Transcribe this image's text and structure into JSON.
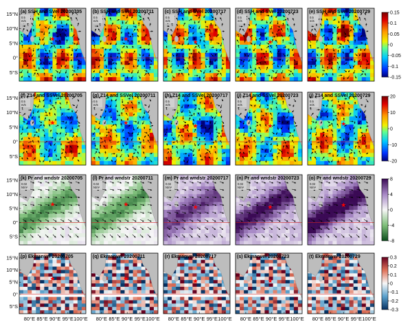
{
  "chart_data": {
    "type": "heatmap",
    "dates": [
      "20200705",
      "20200711",
      "20200717",
      "20200723",
      "20200729"
    ],
    "rows": [
      {
        "id": "ssh",
        "titles": [
          "(a) SSH and SVel  20200705",
          "(b) SSH and SVel  20200711",
          "(c) SSH and SVel  20200717",
          "(d) SSH and SVel  20200723",
          "(e) SSH and SVel  20200729"
        ],
        "vector_scale": "0.5\nm/s",
        "colorbar": {
          "ticks": [
            "0.15",
            "0.1",
            "0.05",
            "0",
            "-0.05",
            "-0.1",
            "-0.15"
          ],
          "range": [
            -0.15,
            0.15
          ],
          "palette": "jet"
        }
      },
      {
        "id": "z14",
        "titles": [
          "(f) Z14 and SSVel  20200705",
          "(g) Z14 and SSVel  20200711",
          "(h) Z14 and SSVel  20200717",
          "(i) Z14 and SSVel  20200723",
          "(j) Z14 and SSVel  20200729"
        ],
        "vector_scale": "0.5\nm/s",
        "colorbar": {
          "ticks": [
            "20",
            "10",
            "0",
            "-10",
            "-20"
          ],
          "range": [
            -20,
            20
          ],
          "palette": "jet"
        }
      },
      {
        "id": "pr",
        "titles": [
          "(k) Pr and wndstr  20200705",
          "(l) Pr and wndstr  20200711",
          "(m) Pr and wndstr  20200717",
          "(n) Pr and wndstr  20200723",
          "(o) Pr and wndstr  20200729"
        ],
        "vector_scale": "0.02\nN/m²",
        "colorbar": {
          "ticks": [
            "8",
            "4",
            "0",
            "-4",
            "-8"
          ],
          "range": [
            -8,
            8
          ],
          "palette": "purple-green"
        }
      },
      {
        "id": "ekman",
        "titles": [
          "(p) Ekmanvel  20200705",
          "(q) Ekmanvel  20200711",
          "(r) Ekmanvel  20200717",
          "(s) Ekmanvel  20200723",
          "(t) Ekmanvel  20200729"
        ],
        "vector_scale": "",
        "colorbar": {
          "ticks": [
            "0.3",
            "0.2",
            "0.1",
            "0",
            "-0.1",
            "-0.2",
            "-0.3"
          ],
          "range": [
            -0.3,
            0.3
          ],
          "palette": "red-blue"
        }
      }
    ],
    "y_ticks": [
      {
        "label": "15°N",
        "lat": 15
      },
      {
        "label": "10°N",
        "lat": 10
      },
      {
        "label": "5°N",
        "lat": 5
      },
      {
        "label": "0°",
        "lat": 0
      },
      {
        "label": "5°S",
        "lat": -5
      }
    ],
    "x_ticks": [
      {
        "label": "80°E",
        "lon": 80
      },
      {
        "label": "85°E",
        "lon": 85
      },
      {
        "label": "90°E",
        "lon": 90
      },
      {
        "label": "95°E",
        "lon": 95
      },
      {
        "label": "100°E",
        "lon": 100
      }
    ],
    "lon_range": [
      76,
      102
    ],
    "lat_range": [
      -8,
      17
    ],
    "marker_lon_lat": [
      [
        89,
        6.5
      ],
      [
        89.5,
        6.5
      ],
      [
        88.5,
        5.5
      ],
      [
        89.5,
        5.5
      ],
      [
        90,
        6.2
      ]
    ]
  }
}
